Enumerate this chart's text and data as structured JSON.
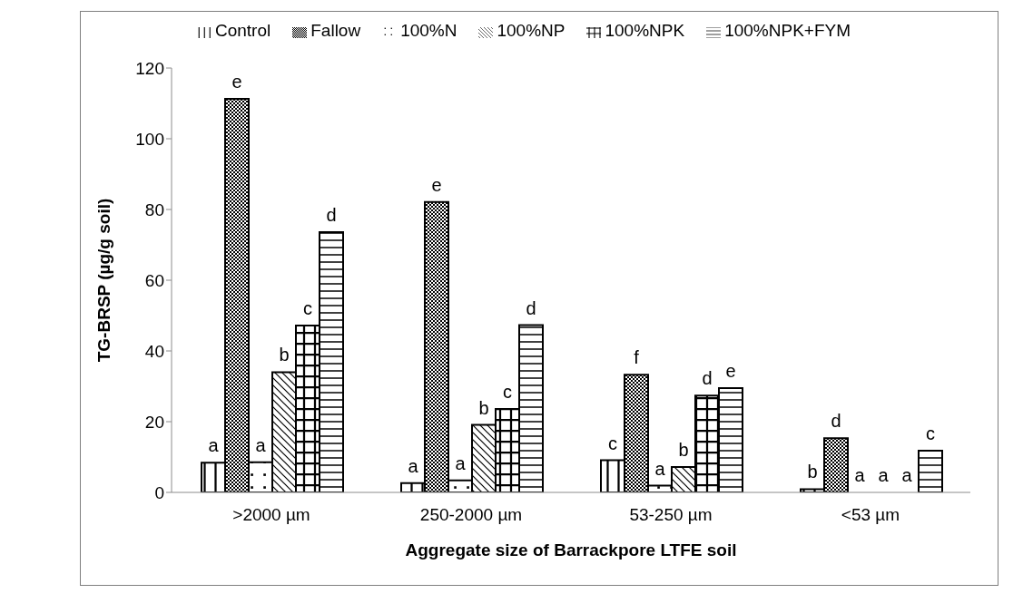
{
  "chart_data": {
    "type": "bar",
    "xlabel": "Aggregate size of Barrackpore LTFE soil",
    "ylabel": "TG-BRSP (µg/g soil)",
    "categories": [
      ">2000 µm",
      "250-2000 µm",
      "53-250 µm",
      "<53 µm"
    ],
    "series": [
      {
        "name": "Control",
        "color": "#000000",
        "values": [
          8.4,
          2.6,
          9.1,
          0.9
        ]
      },
      {
        "name": "Fallow",
        "color": "#000000",
        "values": [
          111.3,
          82.1,
          33.3,
          15.3
        ]
      },
      {
        "name": "100%N",
        "color": "#000000",
        "values": [
          8.5,
          3.4,
          1.9,
          0
        ]
      },
      {
        "name": "100%NP",
        "color": "#000000",
        "values": [
          34.0,
          19.1,
          7.2,
          0
        ]
      },
      {
        "name": "100%NPK",
        "color": "#000000",
        "values": [
          47.2,
          23.6,
          27.4,
          0
        ]
      },
      {
        "name": "100%NPK+FYM",
        "color": "#000000",
        "values": [
          73.6,
          47.3,
          29.5,
          11.8
        ]
      }
    ],
    "ylim": [
      0,
      120
    ],
    "yticks": [
      0,
      20,
      40,
      60,
      80,
      100,
      120
    ],
    "grid": false,
    "legend": "top",
    "annotations": [
      "a",
      "e",
      "a",
      "b",
      "c",
      "d",
      "a",
      "e",
      "a",
      "b",
      "c",
      "d",
      "c",
      "f",
      "a",
      "b",
      "d",
      "e",
      "b",
      "d",
      "a",
      "a",
      "a",
      "c"
    ]
  }
}
